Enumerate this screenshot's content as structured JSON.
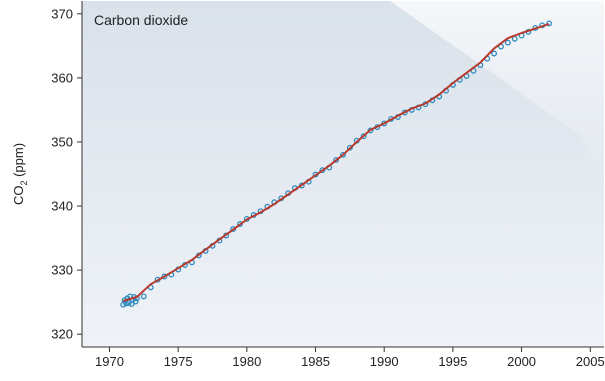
{
  "chart_data": {
    "type": "scatter",
    "annotation": "Carbon dioxide",
    "ylabel_main": "CO",
    "ylabel_sub": "2",
    "ylabel_unit": " (ppm)",
    "xlim": [
      1968,
      2006
    ],
    "ylim": [
      318,
      372
    ],
    "x_ticks": [
      1970,
      1975,
      1980,
      1985,
      1990,
      1995,
      2000,
      2005
    ],
    "y_ticks": [
      320,
      330,
      340,
      350,
      360,
      370
    ],
    "grid": false,
    "colors": {
      "panel_top": "#d9e1ea",
      "panel_bottom": "#eff3f7",
      "highlight": "#ffffff",
      "points": "#2e8bbf",
      "trend": "#b83a2e",
      "axis": "#333333"
    },
    "series": [
      {
        "style": "points",
        "x": [
          1971.0,
          1971.1,
          1971.2,
          1971.3,
          1971.4,
          1971.5,
          1971.6,
          1971.7,
          1971.8,
          1971.9,
          1972.0,
          1972.5,
          1973.0,
          1973.5,
          1974.0,
          1974.5,
          1975.0,
          1975.5,
          1976.0,
          1976.5,
          1977.0,
          1977.5,
          1978.0,
          1978.5,
          1979.0,
          1979.5,
          1980.0,
          1980.5,
          1981.0,
          1981.5,
          1982.0,
          1982.5,
          1983.0,
          1983.5,
          1984.0,
          1984.5,
          1985.0,
          1985.5,
          1986.0,
          1986.5,
          1987.0,
          1987.5,
          1988.0,
          1988.5,
          1989.0,
          1989.5,
          1990.0,
          1990.5,
          1991.0,
          1991.5,
          1992.0,
          1992.5,
          1993.0,
          1993.5,
          1994.0,
          1994.5,
          1995.0,
          1995.5,
          1996.0,
          1996.5,
          1997.0,
          1997.5,
          1998.0,
          1998.5,
          1999.0,
          1999.5,
          2000.0,
          2000.5,
          2001.0,
          2001.5,
          2002.0
        ],
        "y": [
          324.6,
          325.3,
          324.8,
          325.6,
          324.9,
          325.9,
          324.7,
          325.4,
          325.8,
          325.1,
          325.6,
          325.9,
          327.3,
          328.5,
          329.0,
          329.3,
          330.1,
          330.8,
          331.2,
          332.3,
          333.0,
          333.8,
          334.6,
          335.4,
          336.4,
          337.2,
          338.0,
          338.6,
          339.2,
          339.9,
          340.6,
          341.2,
          342.0,
          342.8,
          343.2,
          343.8,
          344.9,
          345.6,
          346.0,
          347.2,
          348.0,
          349.1,
          350.2,
          350.9,
          351.8,
          352.3,
          352.9,
          353.6,
          353.9,
          354.6,
          355.0,
          355.4,
          355.9,
          356.5,
          357.1,
          358.0,
          358.9,
          359.7,
          360.3,
          361.1,
          362.0,
          363.0,
          363.8,
          364.9,
          365.5,
          366.1,
          366.6,
          367.2,
          367.8,
          368.2,
          368.5
        ]
      },
      {
        "style": "line",
        "x": [
          1971,
          1972,
          1973,
          1974,
          1975,
          1976,
          1977,
          1978,
          1979,
          1980,
          1981,
          1982,
          1983,
          1984,
          1985,
          1986,
          1987,
          1988,
          1989,
          1990,
          1991,
          1992,
          1993,
          1994,
          1995,
          1996,
          1997,
          1998,
          1999,
          2000,
          2001,
          2002
        ],
        "y": [
          325.2,
          325.8,
          327.8,
          329.0,
          330.3,
          331.6,
          333.2,
          334.8,
          336.3,
          337.9,
          339.0,
          340.3,
          341.8,
          343.3,
          344.8,
          346.3,
          348.0,
          350.0,
          351.9,
          352.9,
          354.1,
          355.2,
          356.0,
          357.4,
          359.2,
          360.8,
          362.4,
          364.6,
          366.2,
          367.0,
          367.7,
          368.4
        ]
      }
    ]
  }
}
